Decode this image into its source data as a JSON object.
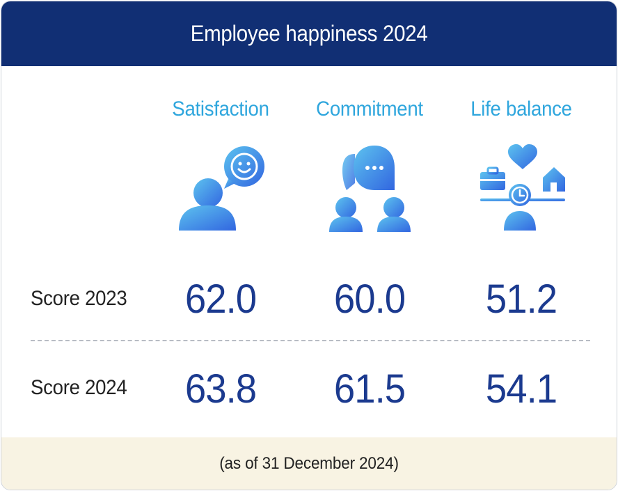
{
  "title": "Employee happiness 2024",
  "footnote": "(as of 31 December 2024)",
  "colors": {
    "header_bg": "#112f74",
    "column_title": "#2fa6dd",
    "value_text": "#1b3a8f",
    "icon_gradient_start": "#5dc3ef",
    "icon_gradient_end": "#3266e0",
    "footer_bg": "#f8f3e3"
  },
  "chart_data": {
    "type": "table",
    "columns": [
      {
        "label": "Satisfaction",
        "icon": "person-smiley-speech-icon"
      },
      {
        "label": "Commitment",
        "icon": "two-people-chat-icon"
      },
      {
        "label": "Life balance",
        "icon": "work-life-balance-icon"
      }
    ],
    "rows": [
      {
        "label": "Score 2023",
        "values": [
          "62.0",
          "60.0",
          "51.2"
        ]
      },
      {
        "label": "Score 2024",
        "values": [
          "63.8",
          "61.5",
          "54.1"
        ]
      }
    ]
  }
}
